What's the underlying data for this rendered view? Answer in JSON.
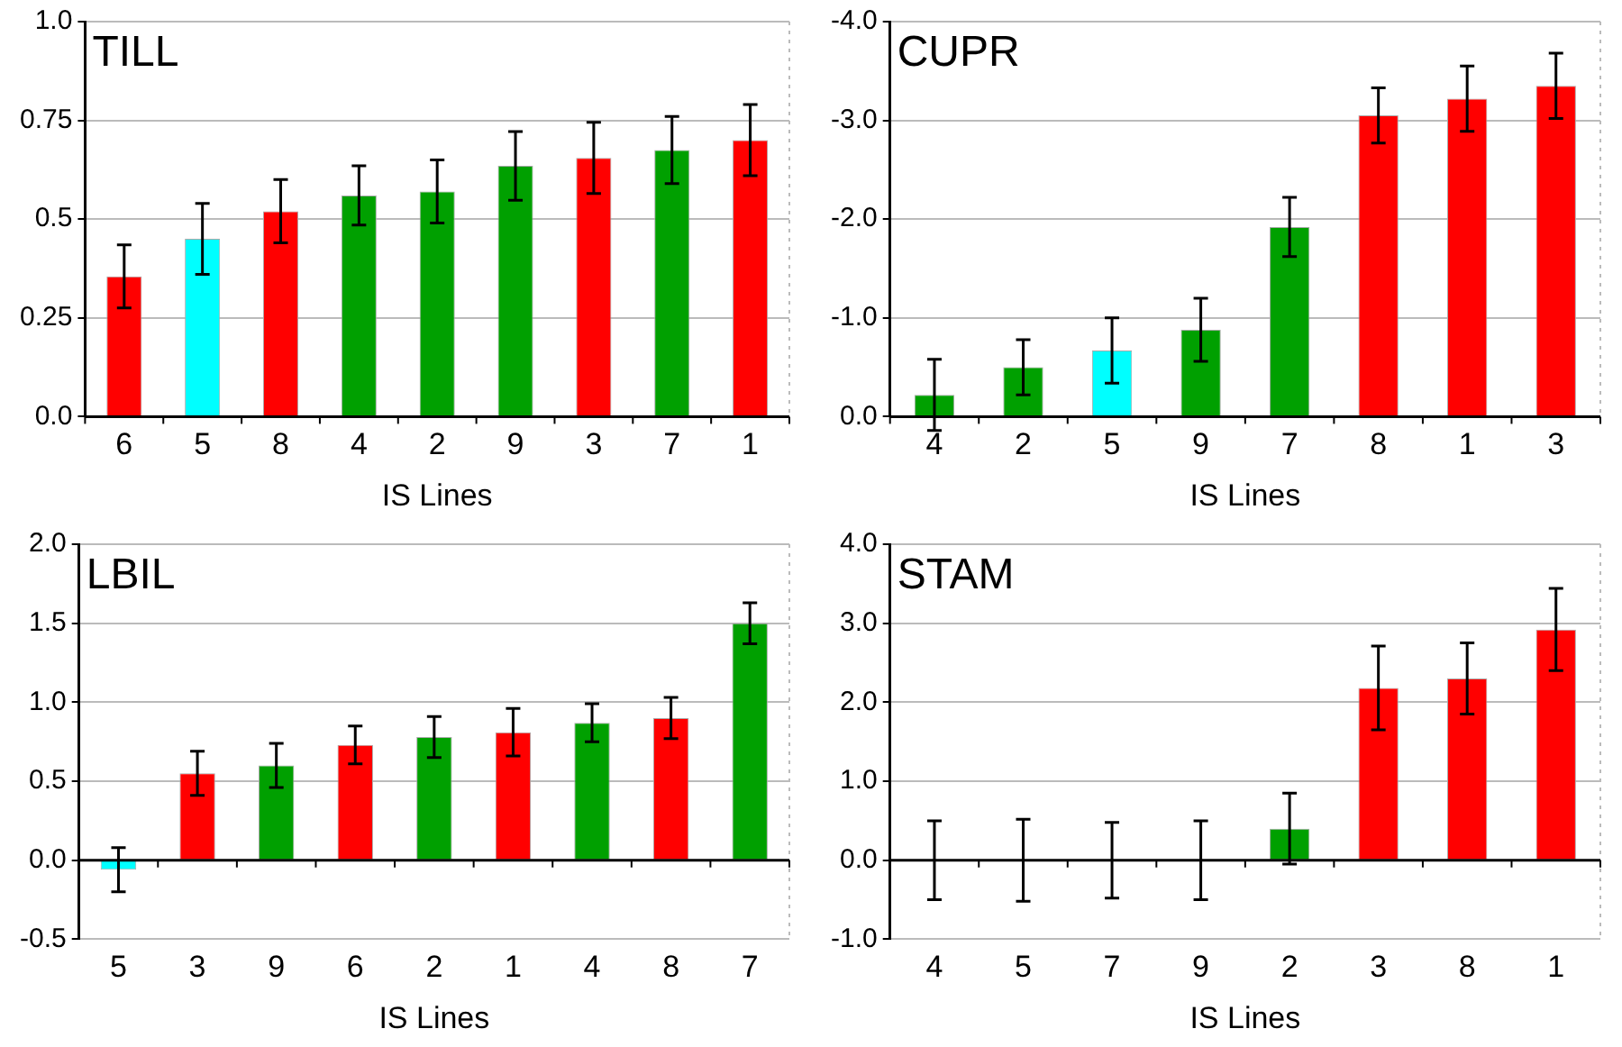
{
  "chart_data": [
    {
      "type": "bar",
      "title": "TILL",
      "xlabel": "IS Lines",
      "categories": [
        "6",
        "5",
        "8",
        "4",
        "2",
        "9",
        "3",
        "7",
        "1"
      ],
      "values": [
        0.355,
        0.45,
        0.52,
        0.56,
        0.57,
        0.635,
        0.655,
        0.675,
        0.7
      ],
      "errors": [
        0.08,
        0.09,
        0.08,
        0.075,
        0.08,
        0.087,
        0.09,
        0.085,
        0.09
      ],
      "colors": [
        "#ff0000",
        "#00ffff",
        "#ff0000",
        "#00a000",
        "#00a000",
        "#00a000",
        "#ff0000",
        "#00a000",
        "#ff0000"
      ],
      "ylim": [
        0,
        1
      ],
      "yticks": [
        {
          "value": 0,
          "label": "0.0"
        },
        0.25,
        0.5,
        0.75,
        {
          "value": 1,
          "label": "1.0"
        }
      ],
      "grid": "y"
    },
    {
      "type": "bar",
      "title": "CUPR",
      "xlabel": "IS Lines",
      "categories": [
        "4",
        "2",
        "5",
        "9",
        "7",
        "8",
        "1",
        "3"
      ],
      "values": [
        -0.22,
        -0.5,
        -0.67,
        -0.88,
        -1.92,
        -3.05,
        -3.22,
        -3.35
      ],
      "errors": [
        0.36,
        0.28,
        0.33,
        0.32,
        0.3,
        0.28,
        0.33,
        0.33
      ],
      "colors": [
        "#00a000",
        "#00a000",
        "#00ffff",
        "#00a000",
        "#00a000",
        "#ff0000",
        "#ff0000",
        "#ff0000"
      ],
      "ylim": [
        0,
        -4
      ],
      "yticks": [
        {
          "value": 0,
          "label": "0.0"
        },
        {
          "value": -1,
          "label": "-1.0"
        },
        {
          "value": -2,
          "label": "-2.0"
        },
        {
          "value": -3,
          "label": "-3.0"
        },
        {
          "value": -4,
          "label": "-4.0"
        }
      ],
      "grid": "y"
    },
    {
      "type": "bar",
      "title": "LBIL",
      "xlabel": "IS Lines",
      "categories": [
        "5",
        "3",
        "9",
        "6",
        "2",
        "1",
        "4",
        "8",
        "7"
      ],
      "values": [
        -0.06,
        0.55,
        0.6,
        0.73,
        0.78,
        0.81,
        0.87,
        0.9,
        1.5
      ],
      "errors": [
        0.14,
        0.14,
        0.14,
        0.12,
        0.13,
        0.15,
        0.12,
        0.13,
        0.13
      ],
      "colors": [
        "#00ffff",
        "#ff0000",
        "#00a000",
        "#ff0000",
        "#00a000",
        "#ff0000",
        "#00a000",
        "#ff0000",
        "#00a000"
      ],
      "ylim": [
        -0.5,
        2
      ],
      "yticks": [
        -0.5,
        {
          "value": 0,
          "label": "0.0"
        },
        0.5,
        {
          "value": 1,
          "label": "1.0"
        },
        1.5,
        {
          "value": 2,
          "label": "2.0"
        }
      ],
      "grid": "y"
    },
    {
      "type": "bar",
      "title": "STAM",
      "xlabel": "IS Lines",
      "categories": [
        "4",
        "5",
        "7",
        "9",
        "2",
        "3",
        "8",
        "1"
      ],
      "values": [
        0,
        0,
        0,
        0,
        0.4,
        2.18,
        2.3,
        2.92
      ],
      "errors": [
        0.5,
        0.52,
        0.48,
        0.5,
        0.45,
        0.53,
        0.45,
        0.52
      ],
      "colors": [
        "#00a000",
        "#00a000",
        "#00a000",
        "#00a000",
        "#00a000",
        "#ff0000",
        "#ff0000",
        "#ff0000"
      ],
      "ylim": [
        -1,
        4
      ],
      "yticks": [
        {
          "value": -1,
          "label": "-1.0"
        },
        {
          "value": 0,
          "label": "0.0"
        },
        {
          "value": 1,
          "label": "1.0"
        },
        {
          "value": 2,
          "label": "2.0"
        },
        {
          "value": 3,
          "label": "3.0"
        },
        {
          "value": 4,
          "label": "4.0"
        }
      ],
      "grid": "y"
    }
  ]
}
